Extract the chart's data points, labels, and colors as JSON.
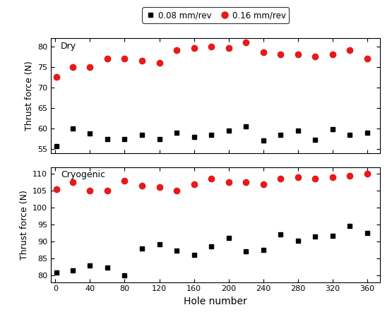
{
  "dry_black_x": [
    1,
    20,
    40,
    60,
    80,
    100,
    120,
    140,
    160,
    180,
    200,
    220,
    240,
    260,
    280,
    300,
    320,
    340,
    360
  ],
  "dry_black_y": [
    55.7,
    60.0,
    58.8,
    57.5,
    57.5,
    58.5,
    57.5,
    59.0,
    58.0,
    58.5,
    59.5,
    60.5,
    57.0,
    58.5,
    59.5,
    57.2,
    59.8,
    58.5,
    59.0
  ],
  "dry_red_x": [
    1,
    20,
    40,
    60,
    80,
    100,
    120,
    140,
    160,
    180,
    200,
    220,
    240,
    260,
    280,
    300,
    320,
    340,
    360
  ],
  "dry_red_y": [
    72.5,
    75.0,
    75.0,
    77.0,
    77.0,
    76.5,
    76.0,
    79.0,
    79.5,
    80.0,
    79.5,
    81.0,
    78.5,
    78.0,
    78.0,
    77.5,
    78.0,
    79.0,
    77.0
  ],
  "cryo_black_x": [
    1,
    20,
    40,
    60,
    80,
    100,
    120,
    140,
    160,
    180,
    200,
    220,
    240,
    260,
    280,
    300,
    320,
    340,
    360
  ],
  "cryo_black_y": [
    80.8,
    81.5,
    83.0,
    82.3,
    80.0,
    88.0,
    89.2,
    87.2,
    86.0,
    88.5,
    91.0,
    87.0,
    87.5,
    92.0,
    90.3,
    91.5,
    91.7,
    94.5,
    92.5
  ],
  "cryo_red_x": [
    1,
    20,
    40,
    60,
    80,
    100,
    120,
    140,
    160,
    180,
    200,
    220,
    240,
    260,
    280,
    300,
    320,
    340,
    360
  ],
  "cryo_red_y": [
    105.5,
    107.5,
    105.0,
    105.0,
    108.0,
    106.5,
    106.0,
    105.0,
    107.0,
    108.5,
    107.5,
    107.5,
    107.0,
    108.5,
    109.0,
    108.5,
    109.0,
    109.5,
    110.0
  ],
  "dry_ylim": [
    54,
    82
  ],
  "dry_yticks": [
    55,
    60,
    65,
    70,
    75,
    80
  ],
  "cryo_ylim": [
    78,
    112
  ],
  "cryo_yticks": [
    80,
    85,
    90,
    95,
    100,
    105,
    110
  ],
  "xlim": [
    -5,
    375
  ],
  "xticks": [
    0,
    40,
    80,
    120,
    160,
    200,
    240,
    280,
    320,
    360
  ],
  "xlabel": "Hole number",
  "dry_ylabel": "Thrust force (N)",
  "cryo_ylabel": "Thrust force (N)",
  "dry_label": "Dry",
  "cryo_label": "Cryogenic",
  "legend_label_black": "0.08 mm/rev",
  "legend_label_red": "0.16 mm/rev",
  "black_color": "#000000",
  "red_color": "#e8191a",
  "marker_black": "s",
  "marker_red": "o",
  "marker_size_black": 4,
  "marker_size_red": 6
}
